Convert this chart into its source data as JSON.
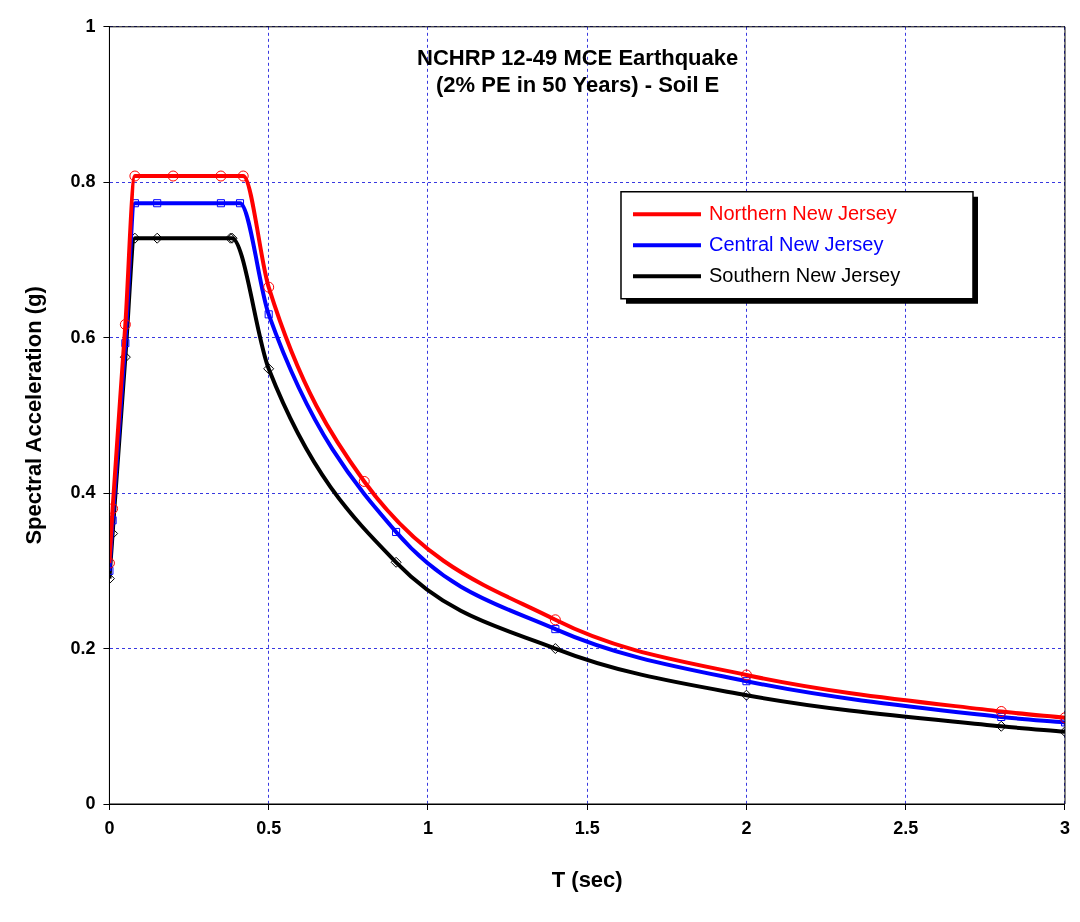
{
  "chart_data": {
    "type": "line",
    "title": "NCHRP 12-49 MCE Earthquake\n(2% PE in 50 Years) - Soil E",
    "xlabel": "T (sec)",
    "ylabel": "Spectral Acceleration (g)",
    "xlim": [
      0,
      3
    ],
    "xticks": [
      0,
      0.5,
      1,
      1.5,
      2,
      2.5,
      3
    ],
    "ylim": [
      0,
      1
    ],
    "yticks": [
      0,
      0.2,
      0.4,
      0.6,
      0.8,
      1
    ],
    "grid": true,
    "legend": "top right",
    "line_style": "solid",
    "series": [
      {
        "name": "Northern New Jersey",
        "color": "#ff0000",
        "marker": "circle",
        "x": [
          0,
          0.01,
          0.05,
          0.08,
          0.2,
          0.35,
          0.42,
          0.5,
          0.8,
          1.4,
          2,
          2.8,
          3
        ],
        "values": [
          0.31,
          0.38,
          0.617,
          0.808,
          0.808,
          0.808,
          0.808,
          0.665,
          0.415,
          0.237,
          0.166,
          0.119,
          0.111
        ]
      },
      {
        "name": "Central New Jersey",
        "color": "#0000ff",
        "marker": "square",
        "x": [
          0,
          0.01,
          0.05,
          0.08,
          0.15,
          0.35,
          0.41,
          0.5,
          0.9,
          1.4,
          2,
          2.8,
          3
        ],
        "values": [
          0.3,
          0.365,
          0.593,
          0.773,
          0.773,
          0.773,
          0.773,
          0.63,
          0.35,
          0.225,
          0.158,
          0.112,
          0.105
        ]
      },
      {
        "name": "Southern New Jersey",
        "color": "#000000",
        "marker": "diamond",
        "x": [
          0,
          0.01,
          0.05,
          0.08,
          0.15,
          0.38,
          0.385,
          0.5,
          0.9,
          1.4,
          2,
          2.8,
          3
        ],
        "values": [
          0.29,
          0.348,
          0.575,
          0.728,
          0.728,
          0.728,
          0.728,
          0.56,
          0.311,
          0.2,
          0.14,
          0.1,
          0.093
        ]
      }
    ]
  }
}
